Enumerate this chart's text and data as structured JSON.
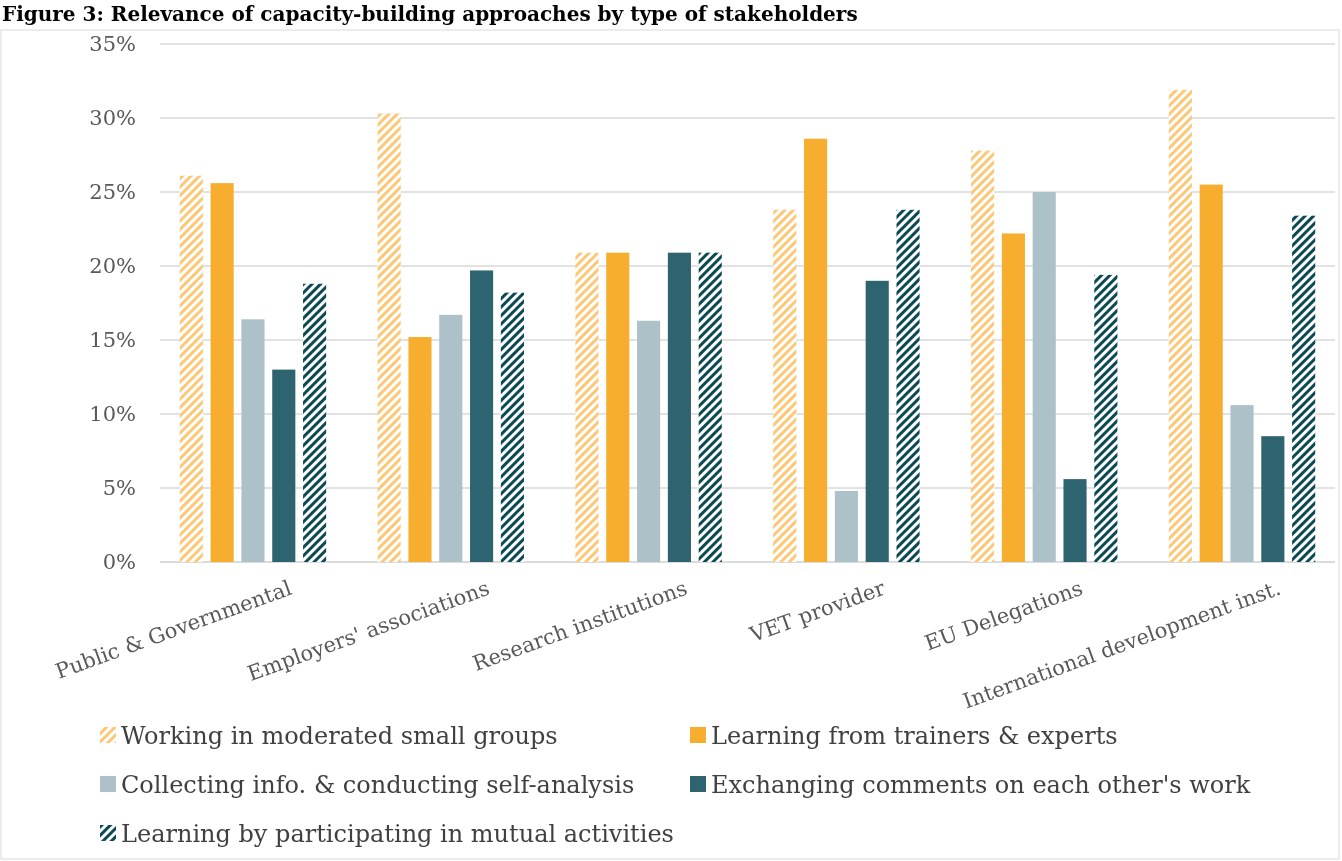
{
  "chart_data": {
    "type": "bar",
    "title": "Figure 3: Relevance of capacity-building approaches by type of stakeholders",
    "categories": [
      "Public & Governmental",
      "Employers' associations",
      "Research institutions",
      "VET provider",
      "EU Delegations",
      "International development inst."
    ],
    "series": [
      {
        "name": "Working in moderated small groups",
        "color": "#fcc877",
        "values": [
          26.1,
          30.3,
          20.9,
          23.8,
          27.8,
          31.9
        ]
      },
      {
        "name": "Learning from trainers & experts",
        "color": "#f7ae2f",
        "values": [
          25.6,
          15.2,
          20.9,
          28.6,
          22.2,
          25.5
        ]
      },
      {
        "name": "Collecting info. & conducting self-analysis",
        "color": "#adc1c9",
        "values": [
          16.4,
          16.7,
          16.3,
          4.8,
          25.0,
          10.6
        ]
      },
      {
        "name": "Exchanging comments on each other's work",
        "color": "#2e6370",
        "values": [
          13.0,
          19.7,
          20.9,
          19.0,
          5.6,
          8.5
        ]
      },
      {
        "name": "Learning by participating in mutual activities",
        "color": "#0b4a55",
        "values": [
          18.8,
          18.2,
          20.9,
          23.8,
          19.4,
          23.4
        ]
      }
    ],
    "ylim": [
      0,
      35
    ],
    "yticks": [
      {
        "value": 0,
        "label": "0%"
      },
      {
        "value": 5,
        "label": "5%"
      },
      {
        "value": 10,
        "label": "10%"
      },
      {
        "value": 15,
        "label": "15%"
      },
      {
        "value": 20,
        "label": "20%"
      },
      {
        "value": 25,
        "label": "25%"
      },
      {
        "value": 30,
        "label": "30%"
      },
      {
        "value": 35,
        "label": "35%"
      }
    ],
    "grid": "y",
    "legend": "bottom"
  }
}
